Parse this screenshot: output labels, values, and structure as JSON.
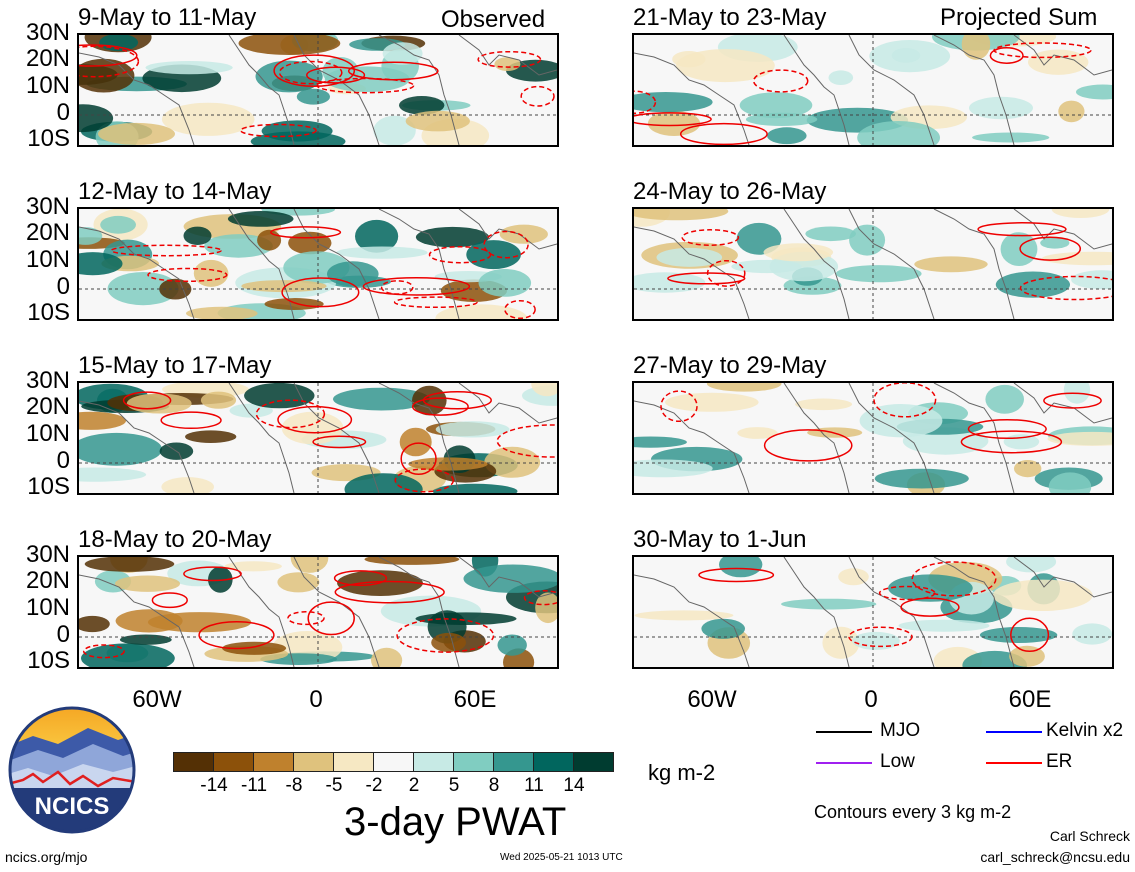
{
  "left_column_label": "Observed",
  "right_column_label": "Projected Sum",
  "panels_left": [
    {
      "title": "9-May to 11-May"
    },
    {
      "title": "12-May to 14-May"
    },
    {
      "title": "15-May to 17-May"
    },
    {
      "title": "18-May to 20-May"
    }
  ],
  "panels_right": [
    {
      "title": "21-May to 23-May"
    },
    {
      "title": "24-May to 26-May"
    },
    {
      "title": "27-May to 29-May"
    },
    {
      "title": "30-May to 1-Jun"
    }
  ],
  "lat_labels": [
    "30N",
    "20N",
    "10N",
    "0",
    "10S"
  ],
  "lon_labels": [
    "60W",
    "0",
    "60E"
  ],
  "colorbar": {
    "colors": [
      "#543005",
      "#8c510a",
      "#bf812d",
      "#dfc27d",
      "#f6e8c3",
      "#f7f7f7",
      "#c7eae5",
      "#80cdc1",
      "#35978f",
      "#01665e",
      "#003c30"
    ],
    "tick_labels": [
      "-14",
      "-11",
      "-8",
      "-5",
      "-2",
      "2",
      "5",
      "8",
      "11",
      "14"
    ],
    "units": "kg m-2",
    "title": "3-day PWAT"
  },
  "legend": {
    "mjo": "MJO",
    "kelvin": "Kelvin x2",
    "low": "Low",
    "er": "ER",
    "mjo_color": "#000000",
    "kelvin_color": "#0000ff",
    "low_color": "#a020f0",
    "er_color": "#ff0000",
    "contour_note": "Contours every 3 kg m-2"
  },
  "logo": {
    "text": "NCICS"
  },
  "footer": {
    "url": "ncics.org/mjo",
    "timestamp": "Wed 2025-05-21 1013 UTC",
    "author": "Carl Schreck",
    "email": "carl_schreck@ncsu.edu"
  }
}
